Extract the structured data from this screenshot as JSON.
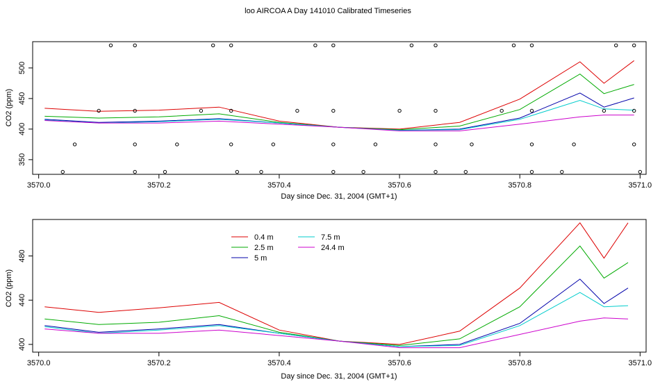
{
  "chart_data": {
    "title": "loo AIRCOA A  Day 141010  Calibrated Timeseries",
    "panels": [
      {
        "type": "line",
        "name": "top",
        "xlabel": "Day since Dec. 31, 2004 (GMT+1)",
        "ylabel": "CO2 (ppm)",
        "xlim": [
          3569.99,
          3571.01
        ],
        "ylim": [
          326,
          543
        ],
        "xticks": [
          "3570.0",
          "3570.2",
          "3570.4",
          "3570.6",
          "3570.8",
          "3571.0"
        ],
        "yticks": [
          "350",
          "400",
          "450",
          "500"
        ],
        "grid": false,
        "series": [
          {
            "color": "#dd0000",
            "x": [
              3570.01,
              3570.1,
              3570.2,
              3570.3,
              3570.4,
              3570.5,
              3570.6,
              3570.7,
              3570.8,
              3570.9,
              3570.94,
              3570.99
            ],
            "values": [
              434,
              429,
              431,
              436,
              413,
              403,
              400,
              411,
              449,
              510,
              475,
              512
            ]
          },
          {
            "color": "#00aa00",
            "x": [
              3570.01,
              3570.1,
              3570.2,
              3570.3,
              3570.4,
              3570.5,
              3570.6,
              3570.7,
              3570.8,
              3570.9,
              3570.94,
              3570.99
            ],
            "values": [
              421,
              418,
              420,
              425,
              411,
              403,
              399,
              405,
              432,
              490,
              458,
              473
            ]
          },
          {
            "color": "#0000aa",
            "x": [
              3570.01,
              3570.1,
              3570.2,
              3570.3,
              3570.4,
              3570.5,
              3570.6,
              3570.7,
              3570.8,
              3570.9,
              3570.94,
              3570.99
            ],
            "values": [
              416,
              411,
              413,
              417,
              410,
              403,
              398,
              400,
              418,
              459,
              436,
              451
            ]
          },
          {
            "color": "#00cccc",
            "x": [
              3570.01,
              3570.1,
              3570.2,
              3570.3,
              3570.4,
              3570.5,
              3570.6,
              3570.7,
              3570.8,
              3570.9,
              3570.94,
              3570.99
            ],
            "values": [
              415,
              410,
              412,
              416,
              410,
              403,
              398,
              399,
              416,
              447,
              433,
              431
            ]
          },
          {
            "color": "#cc00cc",
            "x": [
              3570.01,
              3570.1,
              3570.2,
              3570.3,
              3570.4,
              3570.5,
              3570.6,
              3570.7,
              3570.8,
              3570.9,
              3570.94,
              3570.99
            ],
            "values": [
              414,
              410,
              410,
              413,
              408,
              403,
              397,
              397,
              408,
              420,
              423,
              423
            ]
          }
        ],
        "points": {
          "y537": [
            3570.12,
            3570.16,
            3570.29,
            3570.32,
            3570.46,
            3570.49,
            3570.62,
            3570.66,
            3570.79,
            3570.82,
            3570.96,
            3570.99
          ],
          "y430": [
            3570.1,
            3570.16,
            3570.27,
            3570.32,
            3570.43,
            3570.49,
            3570.6,
            3570.66,
            3570.77,
            3570.82,
            3570.94,
            3570.99
          ],
          "y375": [
            3570.06,
            3570.16,
            3570.23,
            3570.32,
            3570.39,
            3570.49,
            3570.56,
            3570.66,
            3570.72,
            3570.82,
            3570.89,
            3570.99
          ],
          "y330": [
            3570.04,
            3570.16,
            3570.21,
            3570.33,
            3570.37,
            3570.49,
            3570.54,
            3570.66,
            3570.71,
            3570.82,
            3570.87,
            3571.0
          ]
        }
      },
      {
        "type": "line",
        "name": "bottom",
        "xlabel": "Day since Dec. 31, 2004 (GMT+1)",
        "ylabel": "CO2 (ppm)",
        "xlim": [
          3569.99,
          3571.01
        ],
        "ylim": [
          393,
          513
        ],
        "xticks": [
          "3570.0",
          "3570.2",
          "3570.4",
          "3570.6",
          "3570.8",
          "3571.0"
        ],
        "yticks": [
          "400",
          "440",
          "480"
        ],
        "grid": false,
        "legend": "top-left",
        "series": [
          {
            "name": "0.4 m",
            "color": "#dd0000",
            "x": [
              3570.01,
              3570.1,
              3570.2,
              3570.3,
              3570.4,
              3570.5,
              3570.6,
              3570.7,
              3570.8,
              3570.9,
              3570.94,
              3570.98
            ],
            "values": [
              434,
              429,
              433,
              438,
              413,
              403,
              400,
              412,
              451,
              510,
              478,
              510
            ]
          },
          {
            "name": "2.5 m",
            "color": "#00aa00",
            "x": [
              3570.01,
              3570.1,
              3570.2,
              3570.3,
              3570.4,
              3570.5,
              3570.6,
              3570.7,
              3570.8,
              3570.9,
              3570.94,
              3570.98
            ],
            "values": [
              423,
              418,
              420,
              426,
              411,
              403,
              399,
              405,
              434,
              489,
              460,
              474
            ]
          },
          {
            "name": "5 m",
            "color": "#0000aa",
            "x": [
              3570.01,
              3570.1,
              3570.2,
              3570.3,
              3570.4,
              3570.5,
              3570.6,
              3570.7,
              3570.8,
              3570.9,
              3570.94,
              3570.98
            ],
            "values": [
              417,
              411,
              414,
              418,
              410,
              403,
              398,
              400,
              419,
              459,
              437,
              451
            ]
          },
          {
            "name": "7.5 m",
            "color": "#00cccc",
            "x": [
              3570.01,
              3570.1,
              3570.2,
              3570.3,
              3570.4,
              3570.5,
              3570.6,
              3570.7,
              3570.8,
              3570.9,
              3570.94,
              3570.98
            ],
            "values": [
              416,
              410,
              413,
              417,
              410,
              403,
              398,
              399,
              417,
              447,
              434,
              435
            ]
          },
          {
            "name": "24.4 m",
            "color": "#cc00cc",
            "x": [
              3570.01,
              3570.1,
              3570.2,
              3570.3,
              3570.4,
              3570.5,
              3570.6,
              3570.7,
              3570.8,
              3570.9,
              3570.94,
              3570.98
            ],
            "values": [
              414,
              410,
              410,
              413,
              408,
              403,
              397,
              397,
              409,
              421,
              424,
              423
            ]
          }
        ]
      }
    ]
  }
}
